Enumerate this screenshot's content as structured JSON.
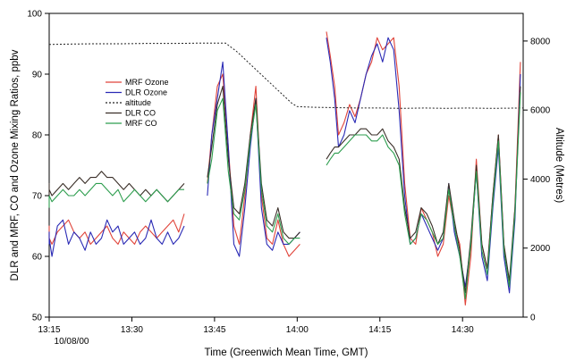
{
  "chart_data": {
    "type": "line",
    "xlabel": "Time (Greenwich Mean Time, GMT)",
    "ylabel_left": "DLR and MRF, CO and Ozone Mixing Ratios, ppbv",
    "ylabel_right": "Altitude (Metres)",
    "date_label": "10/08/00",
    "xlim": [
      0,
      86
    ],
    "x_ticks": [
      {
        "x": 0,
        "label": "13:15"
      },
      {
        "x": 15,
        "label": "13:30"
      },
      {
        "x": 30,
        "label": "13:45"
      },
      {
        "x": 45,
        "label": "14:00"
      },
      {
        "x": 60,
        "label": "14:15"
      },
      {
        "x": 75,
        "label": "14:30"
      }
    ],
    "ylim_left": [
      50,
      100
    ],
    "yticks_left": [
      50,
      60,
      70,
      80,
      90,
      100
    ],
    "ylim_right": [
      0,
      8800
    ],
    "yticks_right": [
      0,
      2000,
      4000,
      6000,
      8000
    ],
    "legend_placement": "upper-left",
    "series": [
      {
        "name": "MRF Ozone",
        "color": "#e0443a",
        "axis": "left",
        "dash": false,
        "x": [
          -2.5,
          -1.5,
          -0.5,
          0.5,
          1.5,
          2.5,
          3.5,
          4.5,
          5.5,
          6.5,
          7.5,
          8.5,
          9.5,
          10.5,
          11.5,
          12.5,
          13.5,
          14.5,
          15.5,
          16.5,
          17.5,
          18.5,
          19.5,
          20.5,
          21.5,
          22.5,
          23.5,
          24.5,
          null,
          28.7,
          29.5,
          30.5,
          31.5,
          32.5,
          33.5,
          34.5,
          35.5,
          36.5,
          37.5,
          38.5,
          39.5,
          40.5,
          41.5,
          42.5,
          43.5,
          44.5,
          45.5,
          null,
          50.3,
          51.0,
          51.8,
          52.5,
          53.5,
          54.5,
          55.5,
          56.5,
          57.5,
          58.5,
          59.5,
          60.5,
          61.5,
          62.5,
          63.5,
          64.5,
          65.5,
          66.5,
          67.5,
          68.5,
          69.5,
          70.5,
          71.5,
          72.5,
          73.5,
          74.5,
          75.5,
          76.5,
          77.5,
          78.5,
          79.5,
          80.5,
          81.5,
          82.5,
          83.5,
          84.5,
          85.5
        ],
        "y": [
          64,
          65,
          63,
          62,
          64,
          65,
          66,
          64,
          63,
          64,
          62,
          63,
          64,
          65,
          63,
          62,
          64,
          63,
          62,
          64,
          65,
          64,
          63,
          64,
          65,
          66,
          64,
          67,
          null,
          72,
          80,
          88,
          90,
          78,
          65,
          62,
          70,
          80,
          88,
          70,
          63,
          62,
          66,
          62,
          60,
          61,
          62,
          null,
          97,
          93,
          88,
          80,
          82,
          85,
          83,
          86,
          90,
          92,
          96,
          94,
          95,
          96,
          88,
          72,
          63,
          62,
          68,
          66,
          64,
          60,
          62,
          70,
          65,
          62,
          52,
          60,
          76,
          62,
          58,
          70,
          80,
          62,
          55,
          68,
          92
        ]
      },
      {
        "name": "DLR Ozone",
        "color": "#2a2ab5",
        "axis": "left",
        "dash": false,
        "x": [
          -2.5,
          -1.5,
          -0.5,
          0.5,
          1.5,
          2.5,
          3.5,
          4.5,
          5.5,
          6.5,
          7.5,
          8.5,
          9.5,
          10.5,
          11.5,
          12.5,
          13.5,
          14.5,
          15.5,
          16.5,
          17.5,
          18.5,
          19.5,
          20.5,
          21.5,
          22.5,
          23.5,
          24.5,
          null,
          28.7,
          29.5,
          30.5,
          31.5,
          32.5,
          33.5,
          34.5,
          35.5,
          36.5,
          37.5,
          38.5,
          39.5,
          40.5,
          41.5,
          42.5,
          43.5,
          44.5,
          45.5,
          null,
          50.3,
          51.0,
          51.8,
          52.5,
          53.5,
          54.5,
          55.5,
          56.5,
          57.5,
          58.5,
          59.5,
          60.5,
          61.5,
          62.5,
          63.5,
          64.5,
          65.5,
          66.5,
          67.5,
          68.5,
          69.5,
          70.5,
          71.5,
          72.5,
          73.5,
          74.5,
          75.5,
          76.5,
          77.5,
          78.5,
          79.5,
          80.5,
          81.5,
          82.5,
          83.5,
          84.5,
          85.5
        ],
        "y": [
          62,
          64,
          63,
          60,
          65,
          66,
          62,
          64,
          63,
          61,
          64,
          62,
          63,
          66,
          64,
          65,
          62,
          63,
          64,
          62,
          63,
          66,
          63,
          62,
          64,
          62,
          63,
          65,
          null,
          70,
          80,
          86,
          92,
          78,
          62,
          60,
          68,
          78,
          86,
          68,
          62,
          61,
          64,
          62,
          62,
          63,
          64,
          null,
          96,
          92,
          86,
          78,
          80,
          84,
          82,
          86,
          90,
          93,
          95,
          92,
          96,
          94,
          84,
          70,
          62,
          63,
          67,
          65,
          63,
          61,
          63,
          72,
          64,
          60,
          55,
          62,
          74,
          60,
          56,
          68,
          78,
          60,
          54,
          66,
          90
        ]
      },
      {
        "name": "altitude",
        "color": "#222222",
        "axis": "right",
        "dash": true,
        "x": [
          -3.5,
          3,
          8,
          13,
          18,
          23,
          28,
          32,
          34,
          36,
          38,
          40,
          42,
          44,
          45,
          48,
          52,
          56,
          60,
          64,
          68,
          72,
          76,
          80,
          86
        ],
        "y": [
          7900,
          7910,
          7920,
          7920,
          7930,
          7930,
          7940,
          7940,
          7700,
          7400,
          7100,
          6800,
          6500,
          6200,
          6100,
          6080,
          6070,
          6060,
          6060,
          6050,
          6060,
          6050,
          6060,
          6050,
          6060
        ]
      },
      {
        "name": "DLR CO",
        "color": "#3a2f28",
        "axis": "left",
        "dash": false,
        "x": [
          -2.5,
          -1.5,
          -0.5,
          0.5,
          1.5,
          2.5,
          3.5,
          4.5,
          5.5,
          6.5,
          7.5,
          8.5,
          9.5,
          10.5,
          11.5,
          12.5,
          13.5,
          14.5,
          15.5,
          16.5,
          17.5,
          18.5,
          19.5,
          20.5,
          21.5,
          22.5,
          23.5,
          24.5,
          null,
          28.7,
          29.5,
          30.5,
          31.5,
          32.5,
          33.5,
          34.5,
          35.5,
          36.5,
          37.5,
          38.5,
          39.5,
          40.5,
          41.5,
          42.5,
          43.5,
          44.5,
          45.5,
          null,
          50.3,
          51.0,
          51.8,
          52.5,
          53.5,
          54.5,
          55.5,
          56.5,
          57.5,
          58.5,
          59.5,
          60.5,
          61.5,
          62.5,
          63.5,
          64.5,
          65.5,
          66.5,
          67.5,
          68.5,
          69.5,
          70.5,
          71.5,
          72.5,
          73.5,
          74.5,
          75.5,
          76.5,
          77.5,
          78.5,
          79.5,
          80.5,
          81.5,
          82.5,
          83.5,
          84.5,
          85.5
        ],
        "y": [
          70,
          72,
          71,
          70,
          71,
          72,
          71,
          72,
          73,
          72,
          73,
          73,
          74,
          73,
          73,
          72,
          71,
          72,
          71,
          70,
          71,
          70,
          71,
          70,
          69,
          70,
          71,
          72,
          null,
          73,
          78,
          85,
          88,
          76,
          68,
          67,
          72,
          80,
          86,
          72,
          66,
          65,
          68,
          64,
          63,
          63,
          64,
          null,
          76,
          77,
          78,
          78,
          79,
          80,
          80,
          81,
          81,
          80,
          80,
          81,
          79,
          78,
          76,
          68,
          63,
          64,
          68,
          67,
          65,
          62,
          64,
          72,
          66,
          61,
          54,
          63,
          75,
          62,
          58,
          70,
          80,
          62,
          56,
          68,
          88
        ]
      },
      {
        "name": "MRF CO",
        "color": "#2e9e4f",
        "axis": "left",
        "dash": false,
        "x": [
          -2.5,
          -1.5,
          -0.5,
          0.5,
          1.5,
          2.5,
          3.5,
          4.5,
          5.5,
          6.5,
          7.5,
          8.5,
          9.5,
          10.5,
          11.5,
          12.5,
          13.5,
          14.5,
          15.5,
          16.5,
          17.5,
          18.5,
          19.5,
          20.5,
          21.5,
          22.5,
          23.5,
          24.5,
          null,
          28.7,
          29.5,
          30.5,
          31.5,
          32.5,
          33.5,
          34.5,
          35.5,
          36.5,
          37.5,
          38.5,
          39.5,
          40.5,
          41.5,
          42.5,
          43.5,
          44.5,
          45.5,
          null,
          50.3,
          51.0,
          51.8,
          52.5,
          53.5,
          54.5,
          55.5,
          56.5,
          57.5,
          58.5,
          59.5,
          60.5,
          61.5,
          62.5,
          63.5,
          64.5,
          65.5,
          66.5,
          67.5,
          68.5,
          69.5,
          70.5,
          71.5,
          72.5,
          73.5,
          74.5,
          75.5,
          76.5,
          77.5,
          78.5,
          79.5,
          80.5,
          81.5,
          82.5,
          83.5,
          84.5,
          85.5
        ],
        "y": [
          68,
          69,
          70,
          69,
          70,
          71,
          70,
          70,
          71,
          70,
          71,
          72,
          72,
          71,
          70,
          71,
          69,
          70,
          71,
          70,
          69,
          70,
          71,
          70,
          69,
          70,
          71,
          71,
          null,
          72,
          76,
          84,
          86,
          74,
          67,
          66,
          71,
          79,
          85,
          71,
          65,
          64,
          67,
          63,
          62,
          63,
          63,
          null,
          75,
          76,
          77,
          77,
          78,
          79,
          80,
          80,
          80,
          79,
          79,
          80,
          78,
          77,
          75,
          67,
          62,
          63,
          67,
          66,
          64,
          62,
          63,
          71,
          65,
          60,
          53,
          62,
          74,
          61,
          57,
          69,
          79,
          61,
          55,
          67,
          87
        ]
      }
    ]
  }
}
